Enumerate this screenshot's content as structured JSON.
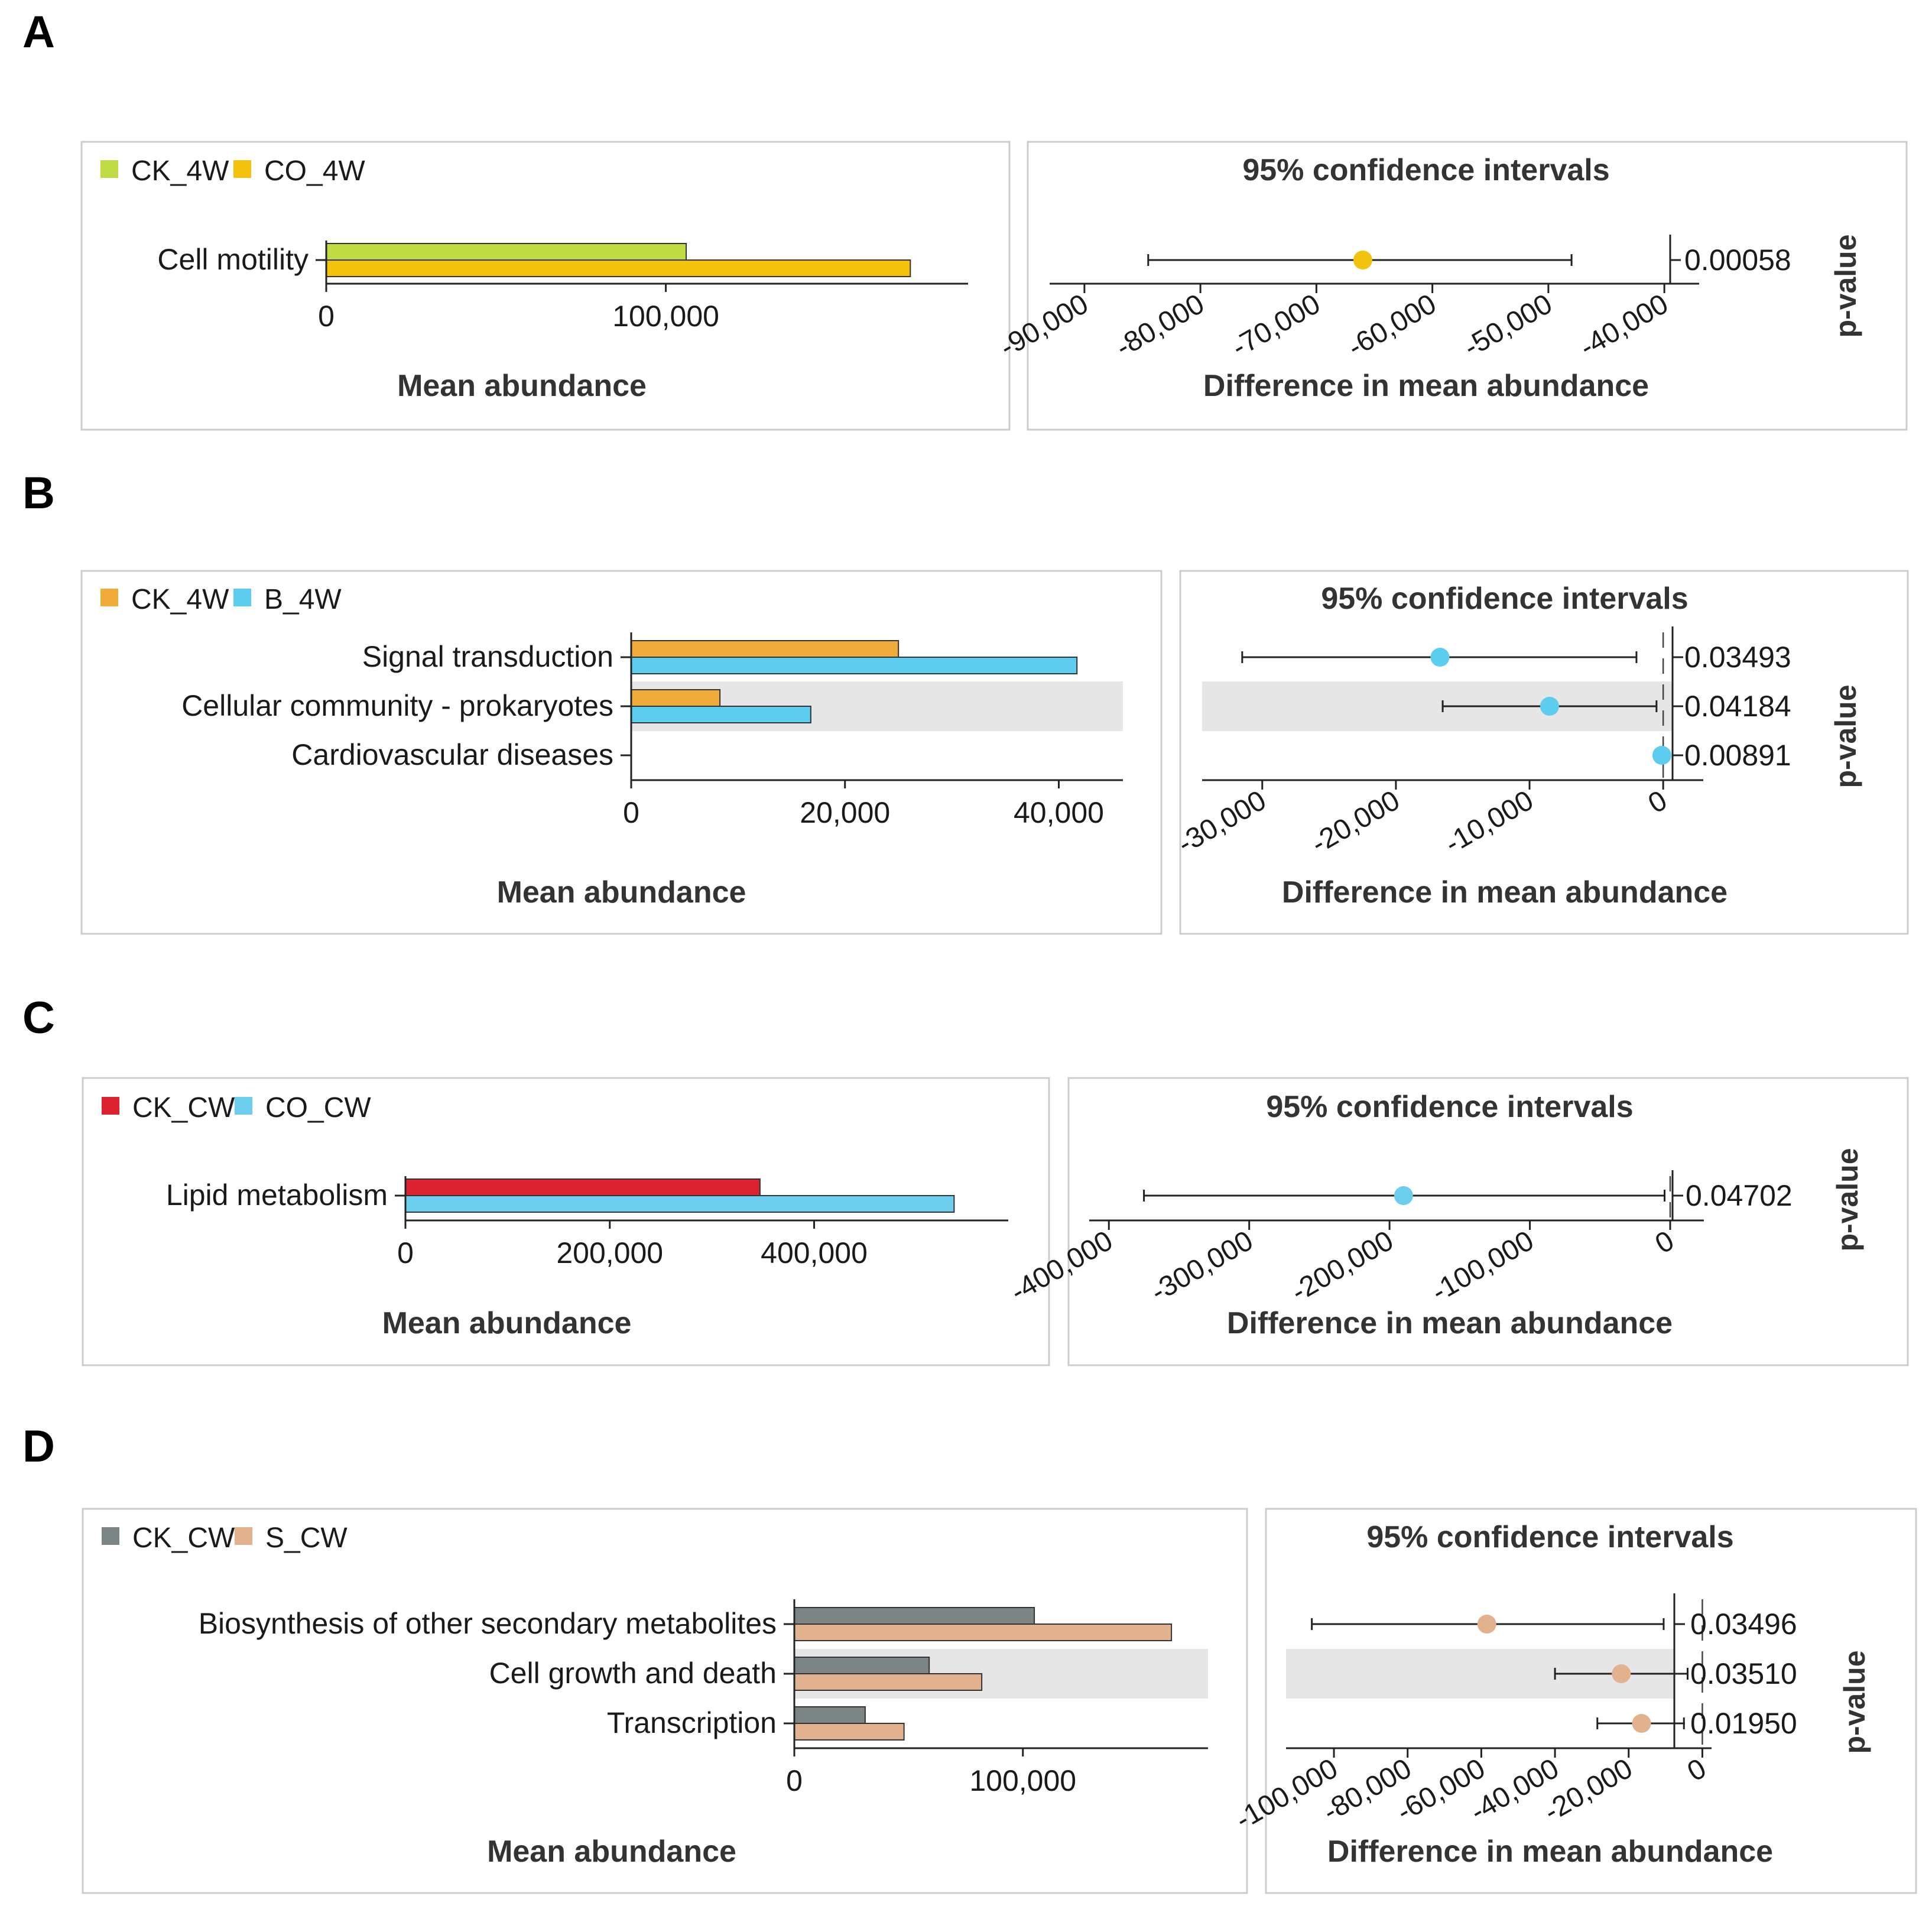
{
  "chart_data": [
    {
      "id": "A",
      "type": "bar",
      "panel_label": "A",
      "legend": [
        {
          "name": "CK_4W",
          "color": "#c0dc45"
        },
        {
          "name": "CO_4W",
          "color": "#f2c20c"
        }
      ],
      "categories": [
        "Cell motility"
      ],
      "series": [
        {
          "name": "CK_4W",
          "values": [
            106000
          ]
        },
        {
          "name": "CO_4W",
          "values": [
            172000
          ]
        }
      ],
      "xlim": [
        0,
        189000
      ],
      "xticks": [
        0,
        100000
      ],
      "xtick_labels": [
        "0",
        "100,000"
      ],
      "xlabel": "Mean abundance",
      "ci": {
        "title": "95% confidence intervals",
        "xlabel": "Difference in mean abundance",
        "ylabel": "p-value",
        "xlim": [
          -93000,
          -37000
        ],
        "xticks": [
          -90000,
          -80000,
          -70000,
          -60000,
          -50000,
          -40000
        ],
        "xtick_labels": [
          "-90,000",
          "-80,000",
          "-70,000",
          "-60,000",
          "-50,000",
          "-40,000"
        ],
        "effects": [
          -66000
        ],
        "ci_low": [
          -84500
        ],
        "ci_high": [
          -48000
        ],
        "pvalues": [
          "0.00058"
        ],
        "dot_colors": [
          "#f2c20c"
        ]
      }
    },
    {
      "id": "B",
      "type": "bar",
      "panel_label": "B",
      "legend": [
        {
          "name": "CK_4W",
          "color": "#f0ab3b"
        },
        {
          "name": "B_4W",
          "color": "#5dcdef"
        }
      ],
      "categories": [
        "Signal transduction",
        "Cellular community - prokaryotes",
        "Cardiovascular diseases"
      ],
      "series": [
        {
          "name": "CK_4W",
          "values": [
            25000,
            8300,
            0
          ]
        },
        {
          "name": "B_4W",
          "values": [
            41700,
            16800,
            0
          ]
        }
      ],
      "xlim": [
        0,
        46000
      ],
      "xticks": [
        0,
        20000,
        40000
      ],
      "xtick_labels": [
        "0",
        "20,000",
        "40,000"
      ],
      "xlabel": "Mean abundance",
      "ci": {
        "title": "95% confidence intervals",
        "xlabel": "Difference in mean abundance",
        "ylabel": "p-value",
        "xlim": [
          -34500,
          3000
        ],
        "xticks": [
          -30000,
          -20000,
          -10000,
          0
        ],
        "xtick_labels": [
          "-30,000",
          "-20,000",
          "-10,000",
          "0"
        ],
        "effects": [
          -16700,
          -8500,
          -100
        ],
        "ci_low": [
          -31500,
          -16500,
          -300
        ],
        "ci_high": [
          -2000,
          -500,
          0
        ],
        "pvalues": [
          "0.03493",
          "0.04184",
          "0.00891"
        ],
        "dot_colors": [
          "#5dcdef",
          "#5dcdef",
          "#5dcdef"
        ]
      }
    },
    {
      "id": "C",
      "type": "bar",
      "panel_label": "C",
      "legend": [
        {
          "name": "CK_CW",
          "color": "#dc2230"
        },
        {
          "name": "CO_CW",
          "color": "#6ccdec"
        }
      ],
      "categories": [
        "Lipid metabolism"
      ],
      "series": [
        {
          "name": "CK_CW",
          "values": [
            347000
          ]
        },
        {
          "name": "CO_CW",
          "values": [
            537000
          ]
        }
      ],
      "xlim": [
        0,
        590000
      ],
      "xticks": [
        0,
        200000,
        400000
      ],
      "xtick_labels": [
        "0",
        "200,000",
        "400,000"
      ],
      "xlabel": "Mean abundance",
      "ci": {
        "title": "95% confidence intervals",
        "xlabel": "Difference in mean abundance",
        "ylabel": "p-value",
        "xlim": [
          -414000,
          24000
        ],
        "xticks": [
          -400000,
          -300000,
          -200000,
          -100000,
          0
        ],
        "xtick_labels": [
          "-400,000",
          "-300,000",
          "-200,000",
          "-100,000",
          "0"
        ],
        "effects": [
          -190000
        ],
        "ci_low": [
          -375000
        ],
        "ci_high": [
          -4000
        ],
        "pvalues": [
          "0.04702"
        ],
        "dot_colors": [
          "#6ccdec"
        ]
      }
    },
    {
      "id": "D",
      "type": "bar",
      "panel_label": "D",
      "legend": [
        {
          "name": "CK_CW",
          "color": "#7b8585"
        },
        {
          "name": "S_CW",
          "color": "#e2b28e"
        }
      ],
      "categories": [
        "Biosynthesis of other secondary metabolites",
        "Cell growth and death",
        "Transcription"
      ],
      "series": [
        {
          "name": "CK_CW",
          "values": [
            105000,
            59000,
            31000
          ]
        },
        {
          "name": "S_CW",
          "values": [
            165000,
            82000,
            48000
          ]
        }
      ],
      "xlim": [
        0,
        181000
      ],
      "xticks": [
        0,
        100000
      ],
      "xtick_labels": [
        "0",
        "100,000"
      ],
      "xlabel": "Mean abundance",
      "ci": {
        "title": "95% confidence intervals",
        "xlabel": "Difference in mean abundance",
        "ylabel": "p-value",
        "xlim": [
          -113000,
          2500
        ],
        "xticks": [
          -100000,
          -80000,
          -60000,
          -40000,
          -20000,
          0
        ],
        "xtick_labels": [
          "-100,000",
          "-80,000",
          "-60,000",
          "-40,000",
          "-20,000",
          "0"
        ],
        "effects": [
          -58500,
          -22000,
          -16500
        ],
        "ci_low": [
          -106000,
          -40000,
          -28500
        ],
        "ci_high": [
          -10500,
          -4000,
          -5000
        ],
        "pvalues": [
          "0.03496",
          "0.03510",
          "0.01950"
        ],
        "dot_colors": [
          "#e2b28e",
          "#e2b28e",
          "#e2b28e"
        ]
      }
    }
  ]
}
